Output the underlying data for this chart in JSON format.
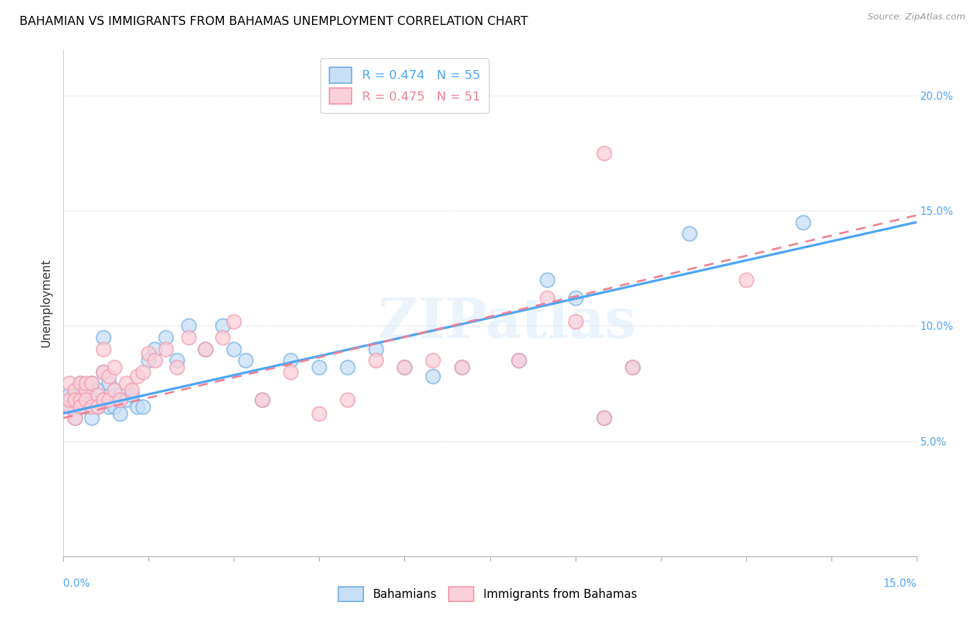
{
  "title": "BAHAMIAN VS IMMIGRANTS FROM BAHAMAS UNEMPLOYMENT CORRELATION CHART",
  "source": "Source: ZipAtlas.com",
  "ylabel": "Unemployment",
  "y_ticks": [
    0.05,
    0.1,
    0.15,
    0.2
  ],
  "y_tick_labels": [
    "5.0%",
    "10.0%",
    "15.0%",
    "20.0%"
  ],
  "xlim": [
    0.0,
    0.15
  ],
  "ylim": [
    0.0,
    0.22
  ],
  "legend_line1": "R = 0.474   N = 55",
  "legend_line2": "R = 0.475   N = 51",
  "line1_color": "#4da6f5",
  "line2_color": "#f08090",
  "series1_face": "#c8dff8",
  "series1_edge": "#7eb5e8",
  "series2_face": "#fcd0da",
  "series2_edge": "#f4a0b0",
  "watermark": "ZIPatlas",
  "blue_x": [
    0.001,
    0.001,
    0.001,
    0.002,
    0.002,
    0.002,
    0.002,
    0.003,
    0.003,
    0.003,
    0.004,
    0.004,
    0.004,
    0.005,
    0.005,
    0.005,
    0.006,
    0.006,
    0.007,
    0.007,
    0.007,
    0.008,
    0.008,
    0.009,
    0.009,
    0.01,
    0.01,
    0.011,
    0.012,
    0.013,
    0.014,
    0.015,
    0.016,
    0.018,
    0.02,
    0.022,
    0.025,
    0.028,
    0.03,
    0.032,
    0.035,
    0.04,
    0.045,
    0.05,
    0.055,
    0.06,
    0.065,
    0.07,
    0.08,
    0.085,
    0.09,
    0.095,
    0.1,
    0.11,
    0.13
  ],
  "blue_y": [
    0.065,
    0.068,
    0.07,
    0.065,
    0.072,
    0.06,
    0.068,
    0.065,
    0.07,
    0.075,
    0.068,
    0.065,
    0.072,
    0.075,
    0.068,
    0.06,
    0.072,
    0.065,
    0.068,
    0.095,
    0.08,
    0.075,
    0.065,
    0.065,
    0.072,
    0.07,
    0.062,
    0.068,
    0.07,
    0.065,
    0.065,
    0.085,
    0.09,
    0.095,
    0.085,
    0.1,
    0.09,
    0.1,
    0.09,
    0.085,
    0.068,
    0.085,
    0.082,
    0.082,
    0.09,
    0.082,
    0.078,
    0.082,
    0.085,
    0.12,
    0.112,
    0.06,
    0.082,
    0.14,
    0.145
  ],
  "pink_x": [
    0.001,
    0.001,
    0.001,
    0.002,
    0.002,
    0.002,
    0.003,
    0.003,
    0.003,
    0.004,
    0.004,
    0.004,
    0.005,
    0.005,
    0.006,
    0.006,
    0.007,
    0.007,
    0.007,
    0.008,
    0.008,
    0.009,
    0.009,
    0.01,
    0.011,
    0.012,
    0.013,
    0.014,
    0.015,
    0.016,
    0.018,
    0.02,
    0.022,
    0.025,
    0.028,
    0.03,
    0.035,
    0.04,
    0.045,
    0.05,
    0.055,
    0.06,
    0.065,
    0.07,
    0.08,
    0.085,
    0.09,
    0.095,
    0.1,
    0.12,
    0.095
  ],
  "pink_y": [
    0.065,
    0.068,
    0.075,
    0.072,
    0.068,
    0.06,
    0.068,
    0.075,
    0.065,
    0.072,
    0.068,
    0.075,
    0.075,
    0.065,
    0.07,
    0.065,
    0.068,
    0.08,
    0.09,
    0.078,
    0.068,
    0.082,
    0.072,
    0.068,
    0.075,
    0.072,
    0.078,
    0.08,
    0.088,
    0.085,
    0.09,
    0.082,
    0.095,
    0.09,
    0.095,
    0.102,
    0.068,
    0.08,
    0.062,
    0.068,
    0.085,
    0.082,
    0.085,
    0.082,
    0.085,
    0.112,
    0.102,
    0.06,
    0.082,
    0.12,
    0.175
  ],
  "line1_x0": 0.0,
  "line1_y0": 0.062,
  "line1_x1": 0.15,
  "line1_y1": 0.145,
  "line2_x0": 0.0,
  "line2_y0": 0.06,
  "line2_x1": 0.15,
  "line2_y1": 0.148
}
